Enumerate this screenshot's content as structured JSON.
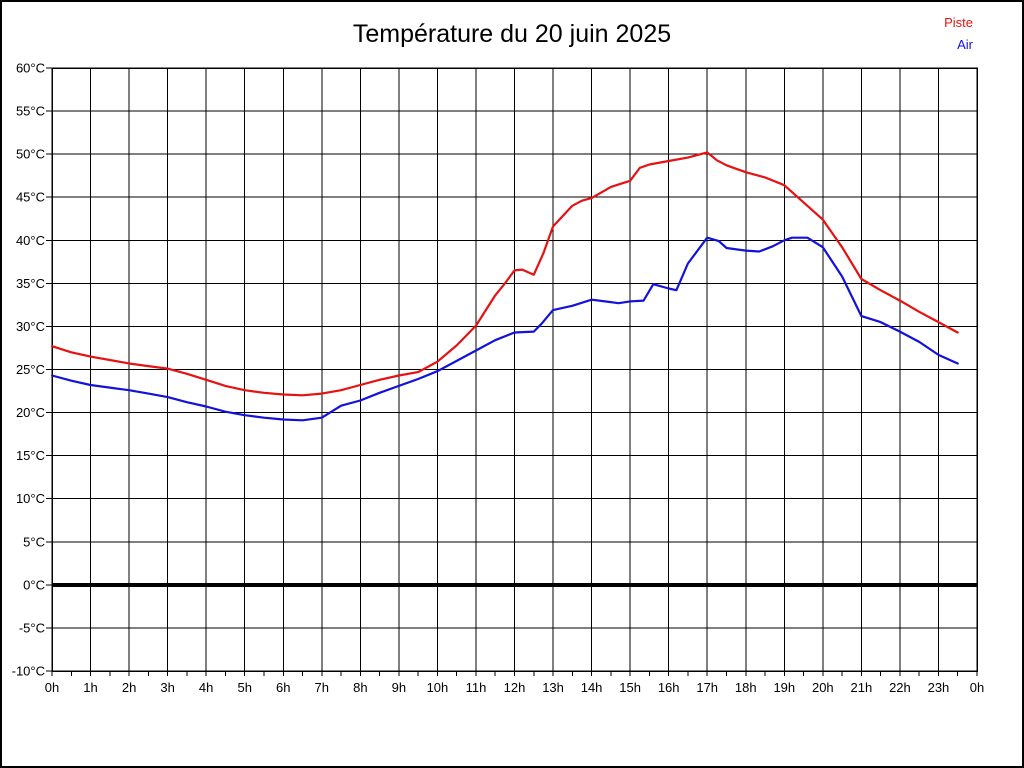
{
  "title": "Température du 20 juin 2025",
  "legend": [
    {
      "label": "Piste",
      "color": "#e61212"
    },
    {
      "label": "Air",
      "color": "#1212dd"
    }
  ],
  "colors": {
    "background": "#ffffff",
    "grid": "#000000",
    "axis": "#000000",
    "zero_line": "#000000",
    "title_text": "#000000",
    "tick_text": "#000000"
  },
  "chart_data": {
    "type": "line",
    "title": "Température du 20 juin 2025",
    "xlabel": "",
    "ylabel": "",
    "grid": "on",
    "legend_position": "top-right",
    "x_axis": {
      "unit": "hours",
      "min": 0,
      "max": 24,
      "tick_step": 1,
      "minor_tick_step": 0.5,
      "tick_labels": [
        "0h",
        "1h",
        "2h",
        "3h",
        "4h",
        "5h",
        "6h",
        "7h",
        "8h",
        "9h",
        "10h",
        "11h",
        "12h",
        "13h",
        "14h",
        "15h",
        "16h",
        "17h",
        "18h",
        "19h",
        "20h",
        "21h",
        "22h",
        "23h",
        "0h"
      ]
    },
    "y_axis": {
      "unit": "°C",
      "min": -10,
      "max": 60,
      "tick_step": 5,
      "tick_labels": [
        "60°C",
        "55°C",
        "50°C",
        "45°C",
        "40°C",
        "35°C",
        "30°C",
        "25°C",
        "20°C",
        "15°C",
        "10°C",
        "5°C",
        "0°C",
        "-5°C",
        "-10°C"
      ],
      "zero_line_at": 0
    },
    "series": [
      {
        "name": "Piste",
        "color": "#e61212",
        "points": [
          [
            0,
            27.7
          ],
          [
            0.5,
            27.0
          ],
          [
            1,
            26.5
          ],
          [
            1.5,
            26.1
          ],
          [
            2,
            25.7
          ],
          [
            2.5,
            25.4
          ],
          [
            3,
            25.1
          ],
          [
            3.5,
            24.5
          ],
          [
            4,
            23.8
          ],
          [
            4.5,
            23.1
          ],
          [
            5,
            22.6
          ],
          [
            5.5,
            22.3
          ],
          [
            6,
            22.1
          ],
          [
            6.5,
            22.0
          ],
          [
            7,
            22.2
          ],
          [
            7.5,
            22.6
          ],
          [
            8,
            23.2
          ],
          [
            8.5,
            23.8
          ],
          [
            9,
            24.3
          ],
          [
            9.5,
            24.7
          ],
          [
            10,
            25.9
          ],
          [
            10.5,
            27.8
          ],
          [
            11,
            30.1
          ],
          [
            11.5,
            33.6
          ],
          [
            11.75,
            35.0
          ],
          [
            12,
            36.5
          ],
          [
            12.2,
            36.6
          ],
          [
            12.5,
            36.0
          ],
          [
            12.75,
            38.5
          ],
          [
            13,
            41.6
          ],
          [
            13.5,
            44.0
          ],
          [
            13.75,
            44.6
          ],
          [
            14,
            44.9
          ],
          [
            14.5,
            46.2
          ],
          [
            15,
            46.9
          ],
          [
            15.25,
            48.4
          ],
          [
            15.5,
            48.8
          ],
          [
            16,
            49.2
          ],
          [
            16.5,
            49.6
          ],
          [
            17,
            50.2
          ],
          [
            17.25,
            49.3
          ],
          [
            17.5,
            48.7
          ],
          [
            18,
            47.9
          ],
          [
            18.5,
            47.3
          ],
          [
            19,
            46.4
          ],
          [
            19.5,
            44.4
          ],
          [
            20,
            42.4
          ],
          [
            20.5,
            39.2
          ],
          [
            21,
            35.5
          ],
          [
            21.5,
            34.2
          ],
          [
            22,
            33.0
          ],
          [
            22.5,
            31.7
          ],
          [
            23,
            30.5
          ],
          [
            23.5,
            29.3
          ]
        ]
      },
      {
        "name": "Air",
        "color": "#1212dd",
        "points": [
          [
            0,
            24.3
          ],
          [
            0.5,
            23.7
          ],
          [
            1,
            23.2
          ],
          [
            1.5,
            22.9
          ],
          [
            2,
            22.6
          ],
          [
            2.5,
            22.2
          ],
          [
            3,
            21.8
          ],
          [
            3.5,
            21.2
          ],
          [
            4,
            20.7
          ],
          [
            4.5,
            20.1
          ],
          [
            5,
            19.7
          ],
          [
            5.5,
            19.4
          ],
          [
            6,
            19.2
          ],
          [
            6.5,
            19.1
          ],
          [
            7,
            19.4
          ],
          [
            7.5,
            20.8
          ],
          [
            8,
            21.4
          ],
          [
            8.5,
            22.3
          ],
          [
            9,
            23.1
          ],
          [
            9.5,
            23.9
          ],
          [
            10,
            24.8
          ],
          [
            10.5,
            26.0
          ],
          [
            11,
            27.2
          ],
          [
            11.5,
            28.4
          ],
          [
            12,
            29.3
          ],
          [
            12.5,
            29.4
          ],
          [
            12.7,
            30.3
          ],
          [
            13,
            31.9
          ],
          [
            13.5,
            32.4
          ],
          [
            14,
            33.1
          ],
          [
            14.35,
            32.9
          ],
          [
            14.7,
            32.7
          ],
          [
            15,
            32.9
          ],
          [
            15.35,
            33.0
          ],
          [
            15.6,
            34.9
          ],
          [
            16,
            34.4
          ],
          [
            16.2,
            34.2
          ],
          [
            16.5,
            37.3
          ],
          [
            17,
            40.3
          ],
          [
            17.3,
            39.9
          ],
          [
            17.5,
            39.1
          ],
          [
            18,
            38.8
          ],
          [
            18.35,
            38.7
          ],
          [
            18.7,
            39.3
          ],
          [
            19,
            40.0
          ],
          [
            19.2,
            40.3
          ],
          [
            19.6,
            40.3
          ],
          [
            20,
            39.2
          ],
          [
            20.5,
            35.8
          ],
          [
            21,
            31.2
          ],
          [
            21.5,
            30.5
          ],
          [
            22,
            29.4
          ],
          [
            22.5,
            28.2
          ],
          [
            23,
            26.7
          ],
          [
            23.5,
            25.7
          ]
        ]
      }
    ]
  }
}
